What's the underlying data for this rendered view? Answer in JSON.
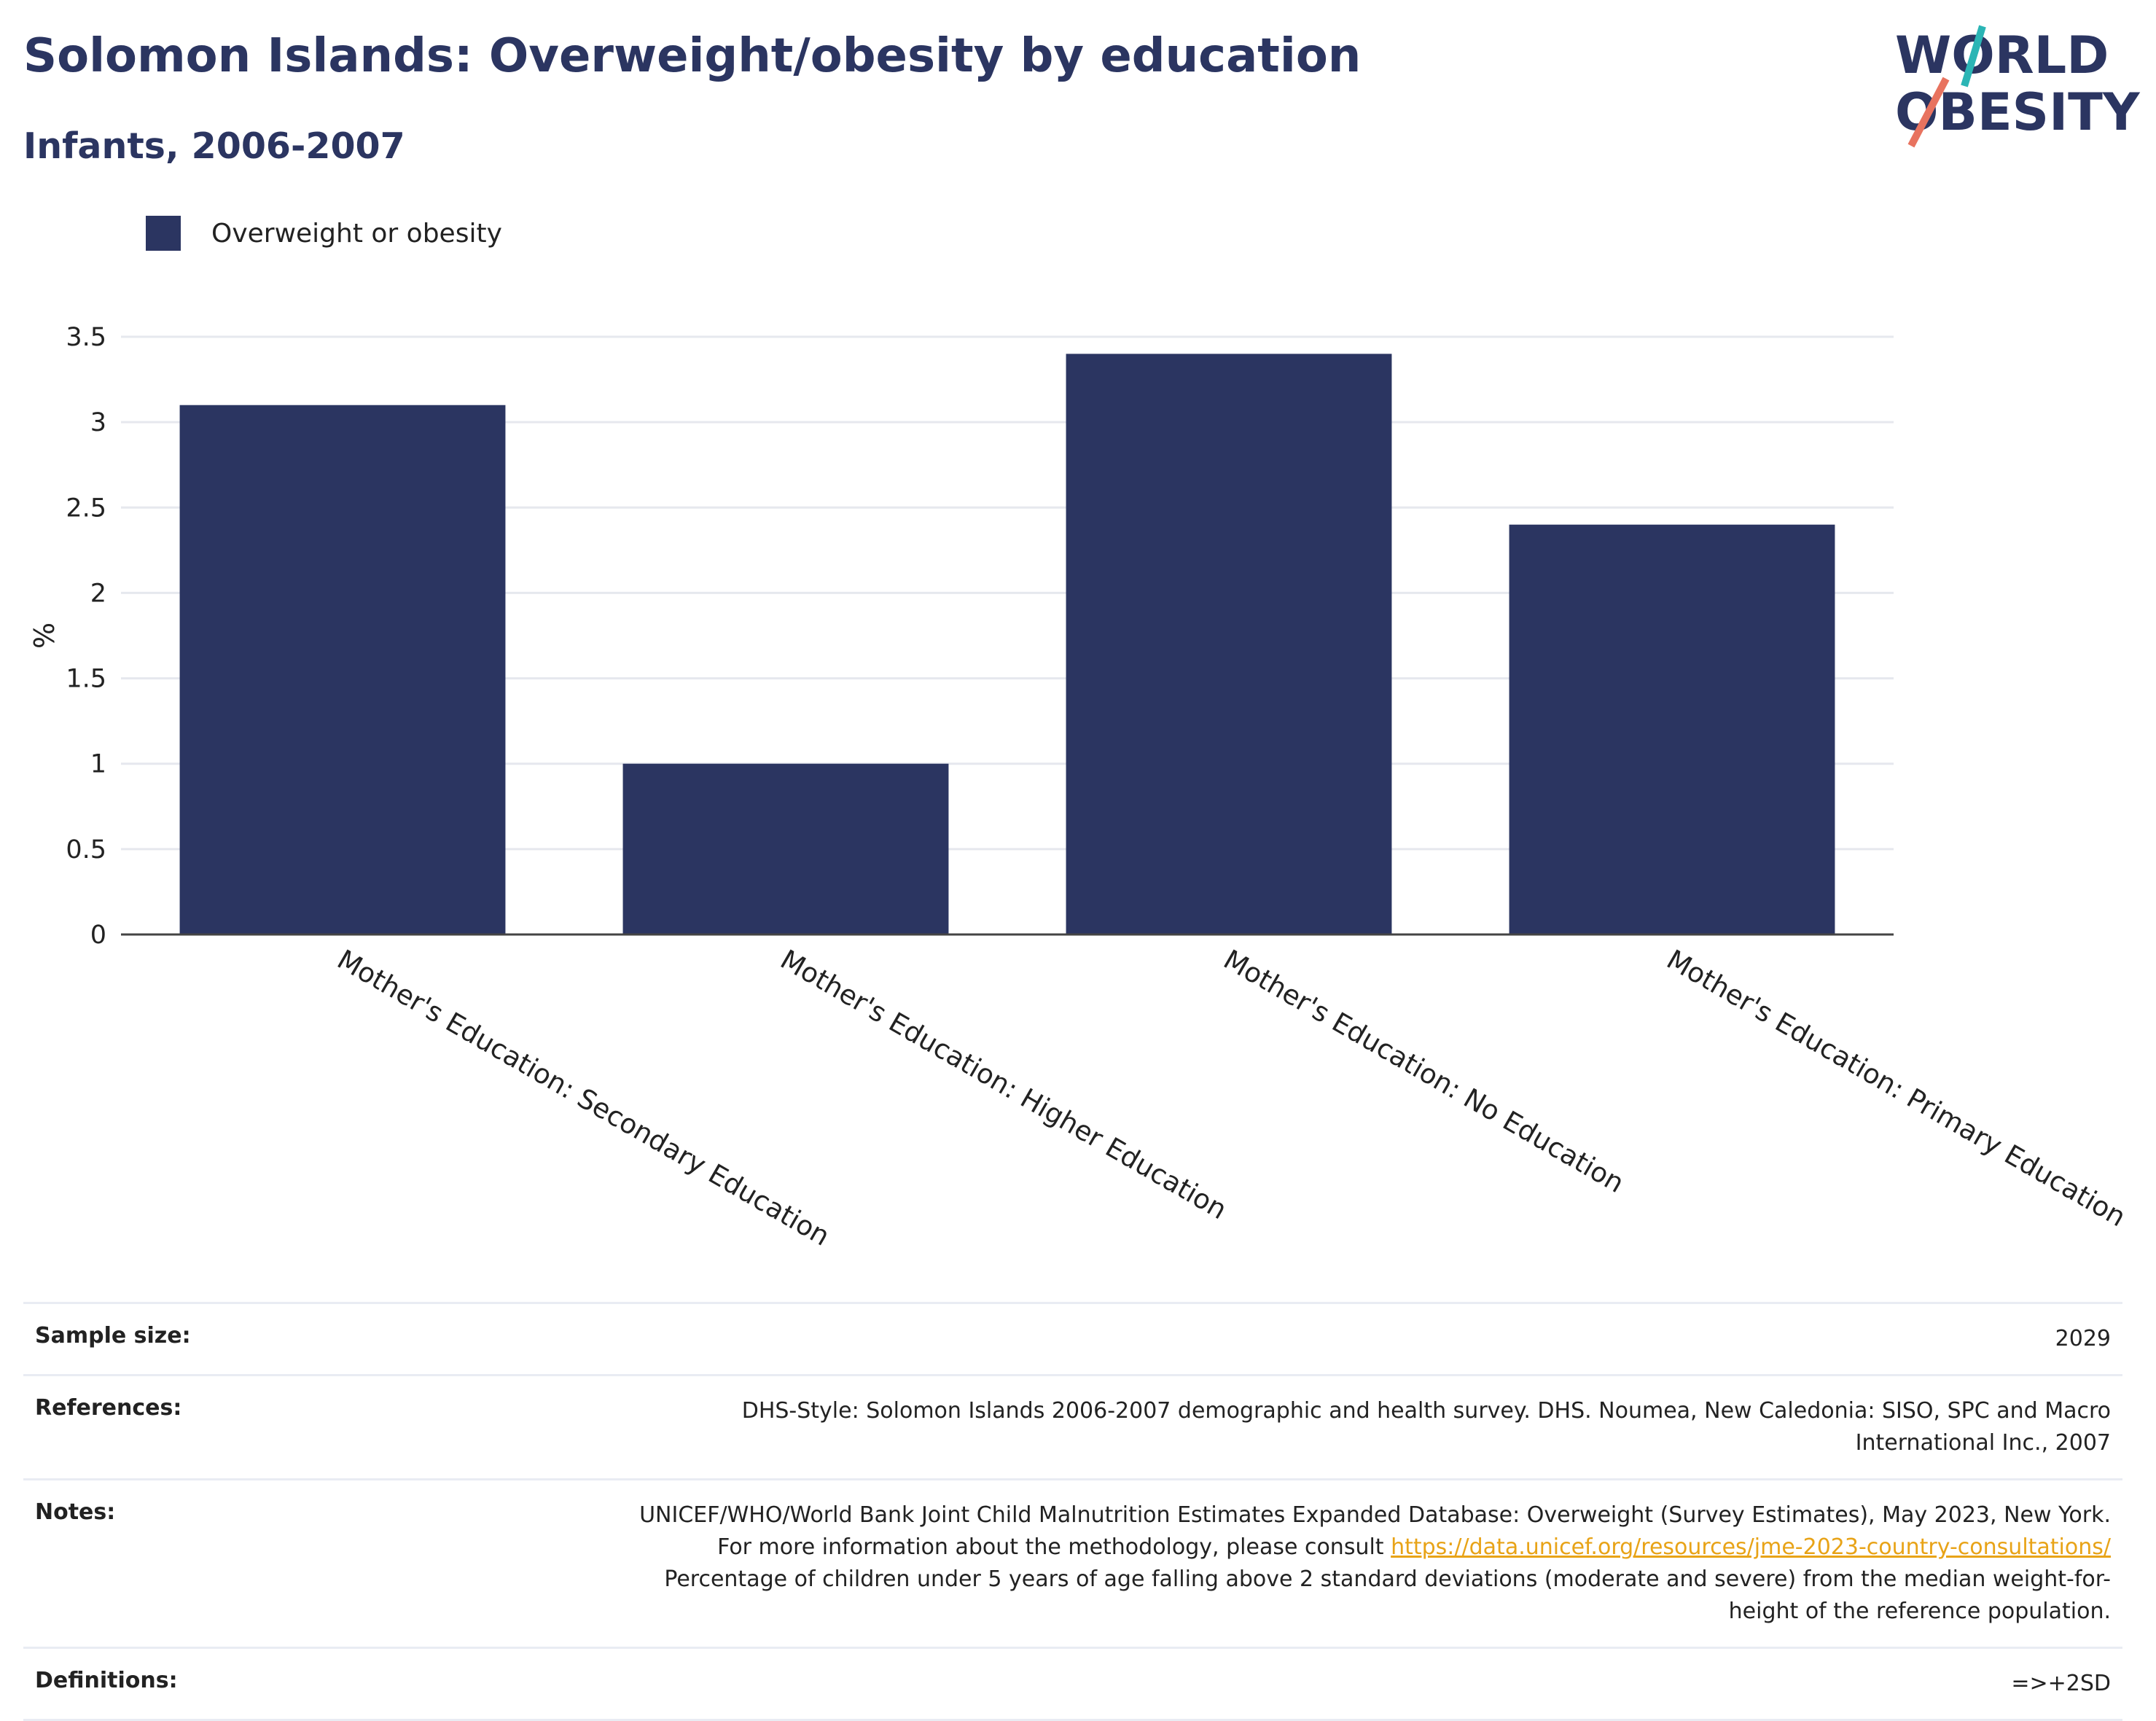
{
  "header": {
    "title": "Solomon Islands: Overweight/obesity by education",
    "subtitle": "Infants, 2006-2007"
  },
  "logo": {
    "line1": "WORLD",
    "line2": "OBESITY",
    "colors": {
      "text": "#2b3561",
      "teal": "#2bb5b5",
      "coral": "#e8735f"
    }
  },
  "legend": {
    "items": [
      {
        "label": "Overweight or obesity",
        "color": "#2b3561"
      }
    ]
  },
  "chart_data": {
    "type": "bar",
    "categories": [
      "Mother's Education: Secondary Education",
      "Mother's Education: Higher Education",
      "Mother's Education: No Education",
      "Mother's Education: Primary Education"
    ],
    "series": [
      {
        "name": "Overweight or obesity",
        "values": [
          3.1,
          1.0,
          3.4,
          2.4
        ],
        "color": "#2b3561"
      }
    ],
    "ylabel": "%",
    "xlabel": "",
    "ylim": [
      0,
      3.5
    ],
    "yticks": [
      "0",
      "0.5",
      "1",
      "1.5",
      "2",
      "2.5",
      "3",
      "3.5"
    ],
    "grid": true,
    "legend_position": "top-left"
  },
  "table": {
    "sample_size": {
      "label": "Sample size:",
      "value": "2029"
    },
    "references": {
      "label": "References:",
      "value": "DHS-Style: Solomon Islands 2006-2007 demographic and health survey. DHS. Noumea, New Caledonia: SISO, SPC and Macro International Inc., 2007"
    },
    "notes": {
      "label": "Notes:",
      "text_before": "UNICEF/WHO/World Bank Joint Child Malnutrition Estimates Expanded Database: Overweight (Survey Estimates), May 2023, New York. For more information about the methodology, please consult ",
      "link": "https://data.unicef.org/resources/jme-2023-country-consultations/",
      "text_after": " Percentage of children under 5 years of age falling above 2 standard deviations (moderate and severe) from the median weight-for-height of the reference population."
    },
    "definitions": {
      "label": "Definitions:",
      "value": "=>+2SD"
    }
  }
}
